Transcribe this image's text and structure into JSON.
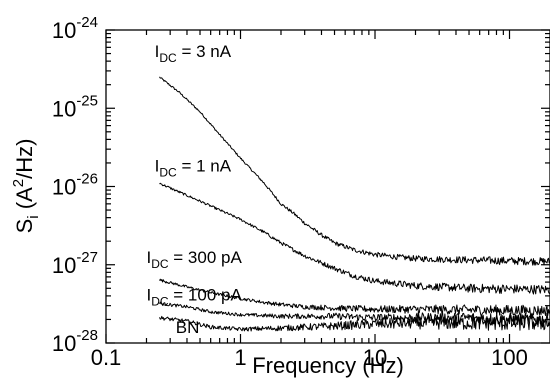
{
  "chart_data": {
    "type": "line",
    "xlabel": "Frequency (Hz)",
    "ylabel_main": "S",
    "ylabel_sub": "i",
    "ylabel_open": " (A",
    "ylabel_sup": "2",
    "ylabel_close": "/Hz)",
    "x_scale": "log",
    "y_scale": "log",
    "xlim": [
      0.1,
      200
    ],
    "ylim": [
      1e-28,
      1e-24
    ],
    "grid": false,
    "x_ticks": [
      {
        "value": 0.1,
        "label": "0.1"
      },
      {
        "value": 1,
        "label": "1"
      },
      {
        "value": 10,
        "label": "10"
      },
      {
        "value": 100,
        "label": "100"
      }
    ],
    "y_ticks": [
      {
        "value": 1e-28,
        "base": "10",
        "exp": "-28"
      },
      {
        "value": 1e-27,
        "base": "10",
        "exp": "-27"
      },
      {
        "value": 1e-26,
        "base": "10",
        "exp": "-26"
      },
      {
        "value": 1e-25,
        "base": "10",
        "exp": "-25"
      },
      {
        "value": 1e-24,
        "base": "10",
        "exp": "-24"
      }
    ],
    "series": [
      {
        "name": "I_DC = 3 nA",
        "label_main": "I",
        "label_sub": "DC",
        "label_rest": " = 3 nA",
        "label_at": [
          0.23,
          4.5e-25
        ],
        "points": [
          [
            0.25,
            2.5e-25
          ],
          [
            0.35,
            1.6e-25
          ],
          [
            0.5,
            9e-26
          ],
          [
            0.7,
            4.6e-26
          ],
          [
            1.0,
            2.3e-26
          ],
          [
            1.5,
            1.1e-26
          ],
          [
            2.0,
            6e-27
          ],
          [
            2.5,
            4.5e-27
          ],
          [
            3.0,
            3.4e-27
          ],
          [
            4.0,
            2.4e-27
          ],
          [
            5.0,
            1.9e-27
          ],
          [
            7.0,
            1.55e-27
          ],
          [
            10,
            1.35e-27
          ],
          [
            15,
            1.25e-27
          ],
          [
            20,
            1.2e-27
          ],
          [
            50,
            1.15e-27
          ],
          [
            100,
            1.12e-27
          ],
          [
            200,
            1.1e-27
          ]
        ],
        "noise": 0.05
      },
      {
        "name": "I_DC = 1 nA",
        "label_main": "I",
        "label_sub": "DC",
        "label_rest": " = 1 nA",
        "label_at": [
          0.23,
          1.55e-26
        ],
        "points": [
          [
            0.25,
            1.1e-26
          ],
          [
            0.35,
            8.5e-27
          ],
          [
            0.5,
            6.5e-27
          ],
          [
            0.7,
            5e-27
          ],
          [
            1.0,
            3.8e-27
          ],
          [
            1.5,
            2.6e-27
          ],
          [
            2.0,
            1.9e-27
          ],
          [
            3.0,
            1.3e-27
          ],
          [
            5.0,
            9e-28
          ],
          [
            7.0,
            7.2e-28
          ],
          [
            10,
            6.2e-28
          ],
          [
            20,
            5.4e-28
          ],
          [
            50,
            5e-28
          ],
          [
            100,
            4.9e-28
          ],
          [
            200,
            4.8e-28
          ]
        ],
        "noise": 0.06
      },
      {
        "name": "I_DC = 300 pA",
        "label_main": "I",
        "label_sub": "DC",
        "label_rest": " = 300 pA",
        "label_at": [
          0.2,
          1.05e-27
        ],
        "points": [
          [
            0.25,
            6.4e-28
          ],
          [
            0.4,
            5.2e-28
          ],
          [
            0.6,
            4.4e-28
          ],
          [
            1.0,
            3.7e-28
          ],
          [
            1.5,
            3.3e-28
          ],
          [
            2.0,
            3.1e-28
          ],
          [
            3.0,
            2.9e-28
          ],
          [
            5.0,
            2.8e-28
          ],
          [
            10,
            2.7e-28
          ],
          [
            20,
            2.7e-28
          ],
          [
            50,
            2.65e-28
          ],
          [
            100,
            2.6e-28
          ],
          [
            200,
            2.6e-28
          ]
        ],
        "noise": 0.07
      },
      {
        "name": "I_DC = 100 pA",
        "label_main": "I",
        "label_sub": "DC",
        "label_rest": " = 100 pA",
        "label_at": [
          0.2,
          3.5e-28
        ],
        "points": [
          [
            0.25,
            3.2e-28
          ],
          [
            0.4,
            2.9e-28
          ],
          [
            0.6,
            2.5e-28
          ],
          [
            1.0,
            2.3e-28
          ],
          [
            2.0,
            2.2e-28
          ],
          [
            5.0,
            2.2e-28
          ],
          [
            10,
            2.1e-28
          ],
          [
            20,
            2.1e-28
          ],
          [
            50,
            2.1e-28
          ],
          [
            100,
            2e-28
          ],
          [
            200,
            2e-28
          ]
        ],
        "noise": 0.08
      },
      {
        "name": "BN",
        "label_main": "BN",
        "label_sub": "",
        "label_rest": "",
        "label_at": [
          0.33,
          1.35e-28
        ],
        "points": [
          [
            0.25,
            2.1e-28
          ],
          [
            0.4,
            1.9e-28
          ],
          [
            0.6,
            1.6e-28
          ],
          [
            1.0,
            1.5e-28
          ],
          [
            2.0,
            1.55e-28
          ],
          [
            5.0,
            1.65e-28
          ],
          [
            10,
            1.75e-28
          ],
          [
            20,
            1.8e-28
          ],
          [
            50,
            1.8e-28
          ],
          [
            100,
            1.8e-28
          ],
          [
            200,
            1.8e-28
          ]
        ],
        "noise": 0.1
      }
    ]
  }
}
